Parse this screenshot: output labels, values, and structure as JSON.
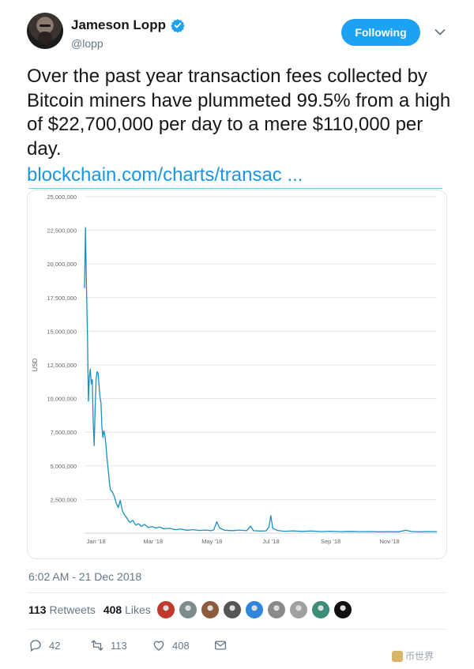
{
  "author": {
    "name": "Jameson Lopp",
    "handle": "@lopp"
  },
  "follow_button": "Following",
  "tweet": {
    "text": "Over the past year transaction fees collected by Bitcoin miners have plummeted 99.5% from a high of $22,700,000 per day to a mere $110,000 per day.",
    "link": "blockchain.com/charts/transac ..."
  },
  "chart_data": {
    "type": "line",
    "ylabel": "USD",
    "ylim": [
      0,
      25000000
    ],
    "yticks": [
      "25,000,000",
      "22,500,000",
      "20,000,000",
      "17,500,000",
      "15,000,000",
      "12,500,000",
      "10,000,000",
      "7,500,000",
      "5,000,000",
      "2,500,000"
    ],
    "xticks": [
      "Jan '18",
      "Mar '18",
      "May '18",
      "Jul '18",
      "Sep '18",
      "Nov '18"
    ],
    "xdomain": [
      "2017-12-20",
      "2018-12-20"
    ],
    "grid": true,
    "series": [
      {
        "color": "#1a8fc0",
        "points": [
          [
            "2017-12-20",
            18200000
          ],
          [
            "2017-12-21",
            22700000
          ],
          [
            "2017-12-22",
            18500000
          ],
          [
            "2017-12-23",
            14800000
          ],
          [
            "2017-12-24",
            9800000
          ],
          [
            "2017-12-25",
            11600000
          ],
          [
            "2017-12-26",
            12200000
          ],
          [
            "2017-12-27",
            11100000
          ],
          [
            "2017-12-28",
            11400000
          ],
          [
            "2017-12-29",
            8200000
          ],
          [
            "2017-12-30",
            6500000
          ],
          [
            "2017-12-31",
            9200000
          ],
          [
            "2018-01-01",
            11500000
          ],
          [
            "2018-01-02",
            12000000
          ],
          [
            "2018-01-03",
            11900000
          ],
          [
            "2018-01-04",
            11000000
          ],
          [
            "2018-01-05",
            10100000
          ],
          [
            "2018-01-06",
            9700000
          ],
          [
            "2018-01-07",
            7900000
          ],
          [
            "2018-01-08",
            7100000
          ],
          [
            "2018-01-09",
            7600000
          ],
          [
            "2018-01-10",
            7300000
          ],
          [
            "2018-01-11",
            6700000
          ],
          [
            "2018-01-12",
            5800000
          ],
          [
            "2018-01-13",
            5100000
          ],
          [
            "2018-01-14",
            4400000
          ],
          [
            "2018-01-15",
            3600000
          ],
          [
            "2018-01-16",
            3200000
          ],
          [
            "2018-01-18",
            3050000
          ],
          [
            "2018-01-20",
            2700000
          ],
          [
            "2018-01-22",
            2200000
          ],
          [
            "2018-01-24",
            1900000
          ],
          [
            "2018-01-26",
            2450000
          ],
          [
            "2018-01-28",
            1700000
          ],
          [
            "2018-01-30",
            1400000
          ],
          [
            "2018-02-02",
            1100000
          ],
          [
            "2018-02-05",
            800000
          ],
          [
            "2018-02-08",
            950000
          ],
          [
            "2018-02-11",
            600000
          ],
          [
            "2018-02-14",
            700000
          ],
          [
            "2018-02-17",
            500000
          ],
          [
            "2018-02-20",
            650000
          ],
          [
            "2018-02-24",
            420000
          ],
          [
            "2018-02-28",
            480000
          ],
          [
            "2018-03-04",
            380000
          ],
          [
            "2018-03-08",
            450000
          ],
          [
            "2018-03-12",
            320000
          ],
          [
            "2018-03-18",
            360000
          ],
          [
            "2018-03-24",
            260000
          ],
          [
            "2018-03-30",
            300000
          ],
          [
            "2018-04-05",
            220000
          ],
          [
            "2018-04-12",
            260000
          ],
          [
            "2018-04-18",
            200000
          ],
          [
            "2018-04-24",
            230000
          ],
          [
            "2018-04-30",
            180000
          ],
          [
            "2018-05-03",
            250000
          ],
          [
            "2018-05-06",
            850000
          ],
          [
            "2018-05-09",
            380000
          ],
          [
            "2018-05-14",
            220000
          ],
          [
            "2018-05-22",
            190000
          ],
          [
            "2018-05-30",
            230000
          ],
          [
            "2018-06-06",
            180000
          ],
          [
            "2018-06-10",
            520000
          ],
          [
            "2018-06-13",
            180000
          ],
          [
            "2018-06-20",
            160000
          ],
          [
            "2018-06-26",
            170000
          ],
          [
            "2018-06-29",
            450000
          ],
          [
            "2018-07-01",
            1300000
          ],
          [
            "2018-07-03",
            350000
          ],
          [
            "2018-07-08",
            200000
          ],
          [
            "2018-07-15",
            140000
          ],
          [
            "2018-07-24",
            170000
          ],
          [
            "2018-08-02",
            130000
          ],
          [
            "2018-08-12",
            160000
          ],
          [
            "2018-08-22",
            120000
          ],
          [
            "2018-09-01",
            140000
          ],
          [
            "2018-09-11",
            110000
          ],
          [
            "2018-09-21",
            130000
          ],
          [
            "2018-10-01",
            110000
          ],
          [
            "2018-10-11",
            120000
          ],
          [
            "2018-10-21",
            100000
          ],
          [
            "2018-10-31",
            110000
          ],
          [
            "2018-11-10",
            100000
          ],
          [
            "2018-11-18",
            210000
          ],
          [
            "2018-11-24",
            120000
          ],
          [
            "2018-12-02",
            100000
          ],
          [
            "2018-12-10",
            120000
          ],
          [
            "2018-12-20",
            110000
          ]
        ]
      }
    ]
  },
  "timestamp": "6:02 AM - 21 Dec 2018",
  "stats": {
    "retweets_count": "113",
    "retweets_label": "Retweets",
    "likes_count": "408",
    "likes_label": "Likes"
  },
  "likers": [
    {
      "color": "#c0392b"
    },
    {
      "color": "#7f8c8d"
    },
    {
      "color": "#8e5a3c"
    },
    {
      "color": "#555555"
    },
    {
      "color": "#2e86de"
    },
    {
      "color": "#8a8a8a"
    },
    {
      "color": "#a0a0a0"
    },
    {
      "color": "#3c8d7a"
    },
    {
      "color": "#111111"
    }
  ],
  "actions": {
    "replies": "42",
    "retweets": "113",
    "likes": "408"
  },
  "watermark": "币世界"
}
